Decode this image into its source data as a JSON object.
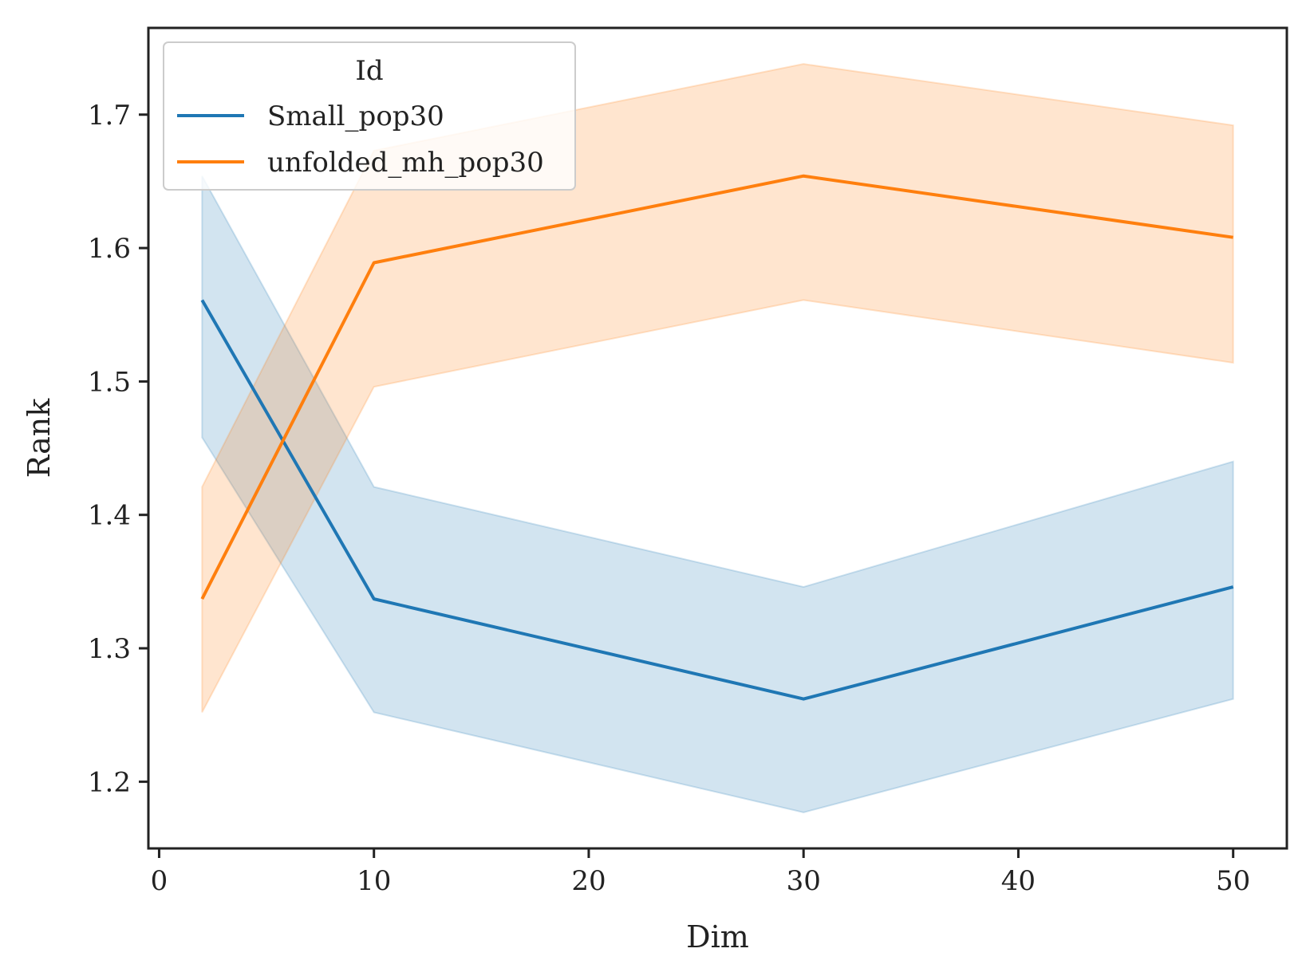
{
  "chart_data": {
    "type": "line",
    "title": "",
    "xlabel": "Dim",
    "ylabel": "Rank",
    "xlim": [
      -0.5,
      52.5
    ],
    "ylim": [
      1.15,
      1.765
    ],
    "xticks": [
      0,
      10,
      20,
      30,
      40,
      50
    ],
    "yticks": [
      1.2,
      1.3,
      1.4,
      1.5,
      1.6,
      1.7
    ],
    "xtick_labels": [
      "0",
      "10",
      "20",
      "30",
      "40",
      "50"
    ],
    "ytick_labels": [
      "1.2",
      "1.3",
      "1.4",
      "1.5",
      "1.6",
      "1.7"
    ],
    "grid": false,
    "legend": {
      "title": "Id",
      "placement": "top-left"
    },
    "x": [
      2,
      10,
      30,
      50
    ],
    "series": [
      {
        "name": "Small_pop30",
        "color": "#1f77b4",
        "values": [
          1.561,
          1.337,
          1.262,
          1.346
        ],
        "ci_lower": [
          1.458,
          1.252,
          1.177,
          1.262
        ],
        "ci_upper": [
          1.654,
          1.421,
          1.346,
          1.44
        ]
      },
      {
        "name": "unfolded_mh_pop30",
        "color": "#ff7f0e",
        "values": [
          1.337,
          1.589,
          1.654,
          1.608
        ],
        "ci_lower": [
          1.252,
          1.496,
          1.561,
          1.514
        ],
        "ci_upper": [
          1.421,
          1.673,
          1.738,
          1.692
        ]
      }
    ]
  }
}
